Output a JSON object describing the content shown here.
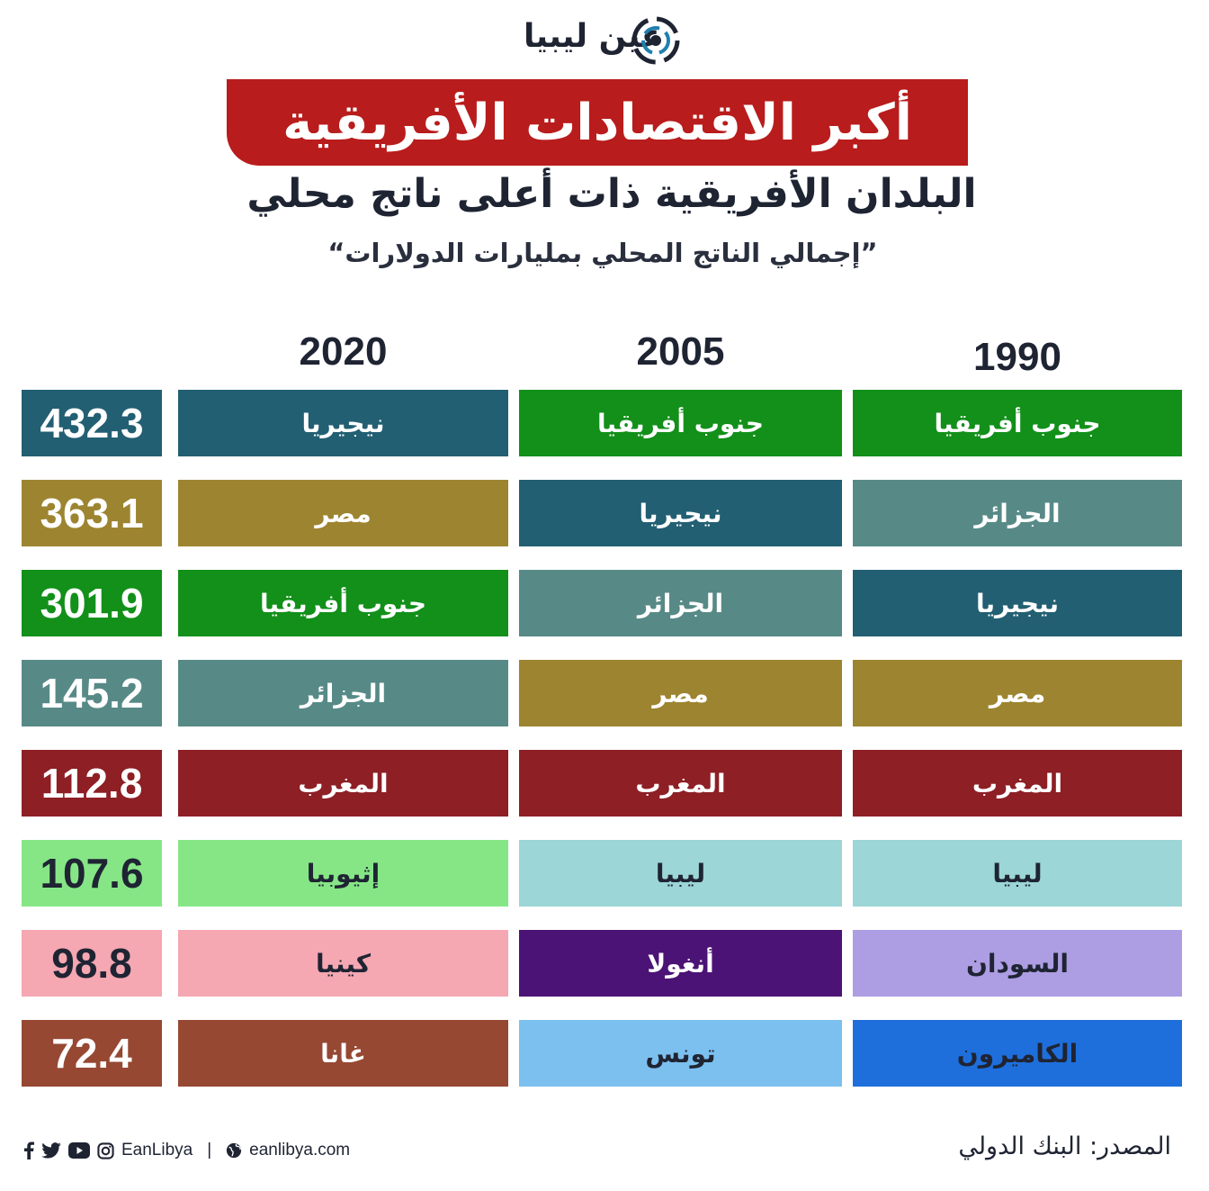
{
  "brand": {
    "logo_text": "عين ليبيا"
  },
  "header": {
    "title": "أكبر الاقتصادات الأفريقية",
    "subtitle": "البلدان الأفريقية ذات أعلى ناتج محلي",
    "unit_note": "”إجمالي الناتج المحلي بمليارات الدولارات“"
  },
  "chart_data": {
    "type": "table",
    "title": "أكبر الاقتصادات الأفريقية",
    "subtitle": "البلدان الأفريقية ذات أعلى ناتج محلي",
    "unit": "”إجمالي الناتج المحلي بمليارات الدولارات“",
    "columns": [
      "2020",
      "2005",
      "1990"
    ],
    "rankings": {
      "2020": [
        "نيجيريا",
        "مصر",
        "جنوب أفريقيا",
        "الجزائر",
        "المغرب",
        "إثيوبيا",
        "كينيا",
        "غانا"
      ],
      "2005": [
        "جنوب أفريقيا",
        "نيجيريا",
        "الجزائر",
        "مصر",
        "المغرب",
        "ليبيا",
        "أنغولا",
        "تونس"
      ],
      "1990": [
        "جنوب أفريقيا",
        "الجزائر",
        "نيجيريا",
        "مصر",
        "المغرب",
        "ليبيا",
        "السودان",
        "الكاميرون"
      ]
    },
    "values_2020": [
      "432.3",
      "363.1",
      "301.9",
      "145.2",
      "112.8",
      "107.6",
      "98.8",
      "72.4"
    ],
    "country_colors": {
      "نيجيريا": "#225f73",
      "مصر": "#9d8430",
      "جنوب أفريقيا": "#12901a",
      "الجزائر": "#578a87",
      "المغرب": "#8d1f25",
      "إثيوبيا": "#86e686",
      "كينيا": "#f5a7b2",
      "غانا": "#964833",
      "ليبيا": "#9cd6d6",
      "أنغولا": "#4c1376",
      "تونس": "#7bc0ef",
      "السودان": "#ad9de3",
      "الكاميرون": "#1e6fdc"
    },
    "dark_text_countries": [
      "إثيوبيا",
      "كينيا",
      "ليبيا",
      "تونس",
      "السودان",
      "الكاميرون"
    ]
  },
  "footer": {
    "handle": "EanLibya",
    "divider": "|",
    "website": "eanlibya.com",
    "source": "المصدر: البنك الدولي",
    "icons": [
      "facebook-icon",
      "twitter-icon",
      "youtube-icon",
      "instagram-icon",
      "globe-icon"
    ]
  }
}
